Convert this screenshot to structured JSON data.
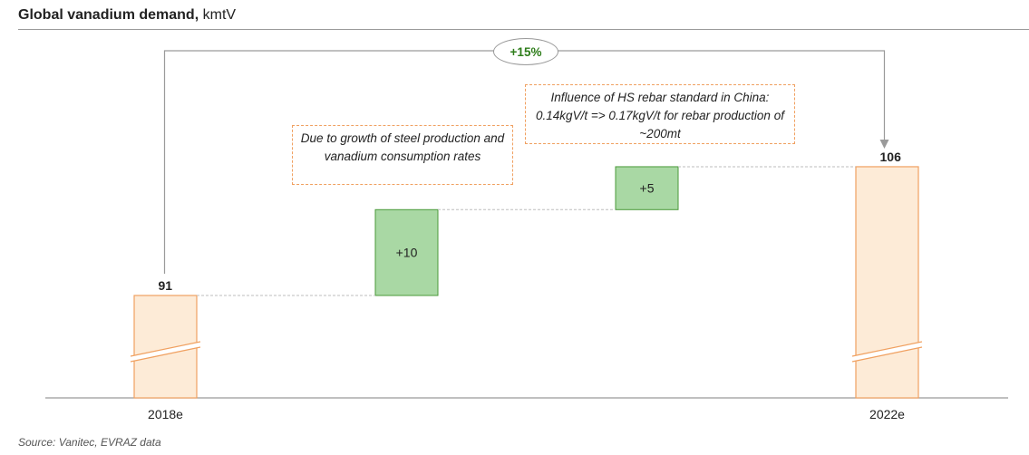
{
  "title": {
    "bold": "Global vanadium demand,",
    "unit": "kmtV"
  },
  "source": "Source: Vanitec, EVRAZ data",
  "growth_label": "+15%",
  "notes": [
    "Due to growth of steel production and vanadium consumption rates",
    "Influence of HS rebar standard in China: 0.14kgV/t => 0.17kgV/t for rebar production of ~200mt"
  ],
  "colors": {
    "total_fill": "#fdebd7",
    "total_stroke": "#f0a060",
    "delta_fill": "#a9d8a4",
    "delta_stroke": "#4a9a3a",
    "connector": "#bdbdbd",
    "growth_text": "#2e7d1a"
  },
  "chart_data": {
    "type": "bar",
    "subtype": "waterfall",
    "title": "Global vanadium demand, kmtV",
    "categories": [
      "2018e",
      "",
      "",
      "2022e"
    ],
    "steps": [
      {
        "category": "2018e",
        "kind": "total",
        "value": 91,
        "label": "91"
      },
      {
        "category": "",
        "kind": "delta",
        "value": 10,
        "label": "+10"
      },
      {
        "category": "",
        "kind": "delta",
        "value": 5,
        "label": "+5"
      },
      {
        "category": "2022e",
        "kind": "total",
        "value": 106,
        "label": "106"
      }
    ],
    "axis_break": true,
    "grid": false,
    "legend": "none"
  }
}
